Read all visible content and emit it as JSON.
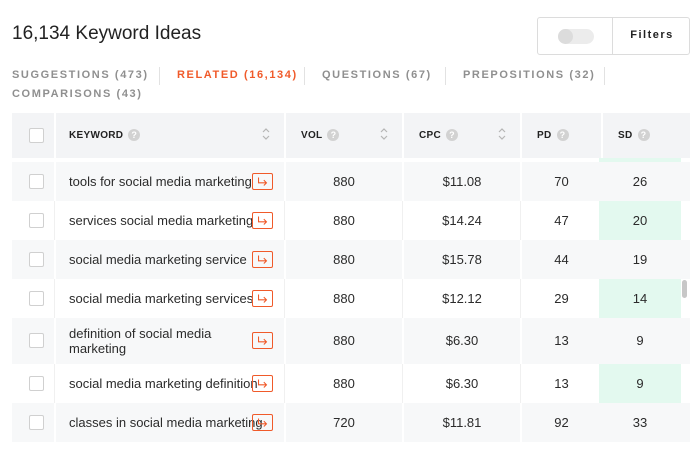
{
  "header": {
    "title": "16,134 Keyword Ideas",
    "filters_label": "Filters"
  },
  "tabs": [
    {
      "label": "SUGGESTIONS (473)",
      "active": false
    },
    {
      "label": "RELATED (16,134)",
      "active": true
    },
    {
      "label": "QUESTIONS (67)",
      "active": false
    },
    {
      "label": "PREPOSITIONS (32)",
      "active": false
    },
    {
      "label": "COMPARISONS (43)",
      "active": false
    }
  ],
  "table": {
    "columns": {
      "keyword": "KEYWORD",
      "vol": "VOL",
      "cpc": "CPC",
      "pd": "PD",
      "sd": "SD"
    },
    "rows": [
      {
        "keyword": "tools for social media marketing",
        "vol": "880",
        "cpc": "$11.08",
        "pd": "70",
        "sd": "26"
      },
      {
        "keyword": "services social media marketing",
        "vol": "880",
        "cpc": "$14.24",
        "pd": "47",
        "sd": "20"
      },
      {
        "keyword": "social media marketing service",
        "vol": "880",
        "cpc": "$15.78",
        "pd": "44",
        "sd": "19"
      },
      {
        "keyword": "social media marketing services",
        "vol": "880",
        "cpc": "$12.12",
        "pd": "29",
        "sd": "14"
      },
      {
        "keyword": "definition of social media marketing",
        "vol": "880",
        "cpc": "$6.30",
        "pd": "13",
        "sd": "9"
      },
      {
        "keyword": "social media marketing definition",
        "vol": "880",
        "cpc": "$6.30",
        "pd": "13",
        "sd": "9"
      },
      {
        "keyword": "classes in social media marketing",
        "vol": "720",
        "cpc": "$11.81",
        "pd": "92",
        "sd": "33"
      }
    ]
  },
  "colors": {
    "accent": "#f05a2a",
    "sd_highlight": "#e3f9ef"
  },
  "icons": {
    "help": "question-circle-icon",
    "sort": "sort-chevrons-icon",
    "open_keyword": "arrow-turn-right-icon"
  }
}
